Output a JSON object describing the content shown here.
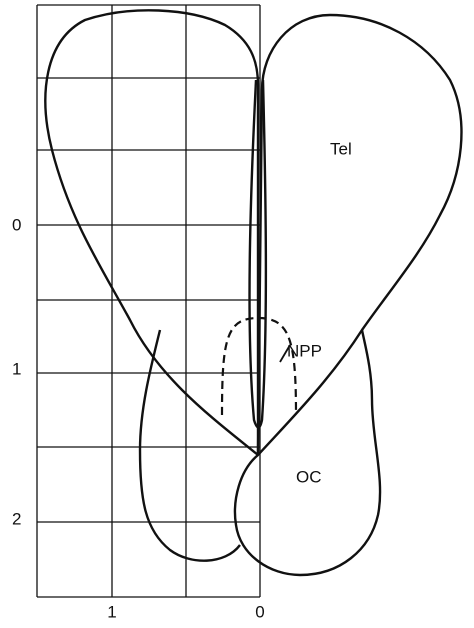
{
  "labels": {
    "tel": "Tel",
    "npp": "NPP",
    "oc": "OC"
  },
  "axis": {
    "left": [
      "0",
      "1",
      "2"
    ],
    "bottom": [
      "1",
      "0"
    ]
  }
}
